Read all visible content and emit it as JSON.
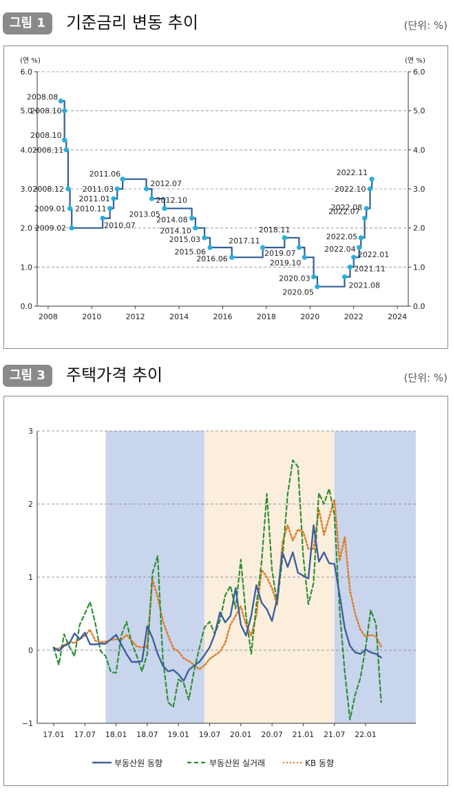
{
  "figure1": {
    "badge": "그림 1",
    "title": "기준금리 변동 추이",
    "unit": "(단위: %)",
    "chart_data": {
      "type": "line",
      "step": true,
      "y_axis_label_left": "(연 %)",
      "y_axis_label_right": "(연 %)",
      "ylim": [
        0,
        6
      ],
      "xlim": [
        2007.5,
        2024.5
      ],
      "y_ticks": [
        "0.0",
        "1.0",
        "2.0",
        "3.0",
        "4.0",
        "5.0",
        "6.0"
      ],
      "x_ticks": [
        "2008",
        "2010",
        "2012",
        "2014",
        "2016",
        "2018",
        "2020",
        "2022",
        "2024"
      ],
      "grid": "horizontal dashed",
      "points": [
        {
          "date": "2008.08",
          "value": 5.25
        },
        {
          "date": "2008.10",
          "value": 5.0
        },
        {
          "date": "2008.10",
          "value": 4.25
        },
        {
          "date": "2008.11",
          "value": 4.0
        },
        {
          "date": "2008.12",
          "value": 3.0
        },
        {
          "date": "2009.01",
          "value": 2.5
        },
        {
          "date": "2009.02",
          "value": 2.0
        },
        {
          "date": "2010.07",
          "value": 2.25
        },
        {
          "date": "2010.11",
          "value": 2.5
        },
        {
          "date": "2011.01",
          "value": 2.75
        },
        {
          "date": "2011.03",
          "value": 3.0
        },
        {
          "date": "2011.06",
          "value": 3.25
        },
        {
          "date": "2012.07",
          "value": 3.0
        },
        {
          "date": "2012.10",
          "value": 2.75
        },
        {
          "date": "2013.05",
          "value": 2.5
        },
        {
          "date": "2014.08",
          "value": 2.25
        },
        {
          "date": "2014.10",
          "value": 2.0
        },
        {
          "date": "2015.03",
          "value": 1.75
        },
        {
          "date": "2015.06",
          "value": 1.5
        },
        {
          "date": "2016.06",
          "value": 1.25
        },
        {
          "date": "2017.11",
          "value": 1.5
        },
        {
          "date": "2018.11",
          "value": 1.75
        },
        {
          "date": "2019.07",
          "value": 1.5
        },
        {
          "date": "2019.10",
          "value": 1.25
        },
        {
          "date": "2020.03",
          "value": 0.75
        },
        {
          "date": "2020.05",
          "value": 0.5
        },
        {
          "date": "2021.08",
          "value": 0.75
        },
        {
          "date": "2021.11",
          "value": 1.0
        },
        {
          "date": "2022.01",
          "value": 1.25
        },
        {
          "date": "2022.04",
          "value": 1.5
        },
        {
          "date": "2022.05",
          "value": 1.75
        },
        {
          "date": "2022.07",
          "value": 2.25
        },
        {
          "date": "2022.08",
          "value": 2.5
        },
        {
          "date": "2022.10",
          "value": 3.0
        },
        {
          "date": "2022.11",
          "value": 3.25
        }
      ]
    }
  },
  "figure3": {
    "badge": "그림 3",
    "title": "주택가격 추이",
    "unit": "(단위: %)",
    "chart_data": {
      "type": "line",
      "ylim": [
        -1,
        3
      ],
      "y_ticks": [
        "−1",
        "0",
        "1",
        "2",
        "3"
      ],
      "x_ticks": [
        "17.01",
        "17.07",
        "18.01",
        "18.07",
        "19.01",
        "19.07",
        "20.01",
        "20.07",
        "21.01",
        "21.07",
        "22.01"
      ],
      "grid": "horizontal dashed",
      "shaded_periods": [
        {
          "from": "17.11",
          "to": "19.06",
          "color": "#c9d5ec"
        },
        {
          "from": "19.06",
          "to": "21.07",
          "color": "#fbeedd"
        },
        {
          "from": "21.07",
          "to": "22.08",
          "color": "#c9d5ec"
        }
      ],
      "legend_position": "bottom",
      "series": [
        {
          "name": "부동산원 동향",
          "color": "#3b5f9e",
          "style": "solid",
          "values": [
            0.03,
            -0.01,
            0.06,
            0.09,
            0.23,
            0.15,
            0.24,
            0.08,
            0.08,
            0.09,
            0.09,
            0.15,
            0.21,
            0.08,
            -0.05,
            -0.16,
            -0.16,
            -0.15,
            0.33,
            0.17,
            -0.05,
            -0.21,
            -0.29,
            -0.27,
            -0.33,
            -0.42,
            -0.27,
            -0.21,
            -0.16,
            -0.07,
            0.04,
            0.22,
            0.52,
            0.38,
            0.47,
            0.85,
            0.35,
            0.2,
            0.47,
            0.89,
            0.65,
            0.56,
            0.4,
            0.71,
            1.34,
            1.14,
            1.34,
            1.06,
            1.02,
            0.98,
            1.71,
            1.21,
            1.34,
            1.19,
            1.18,
            0.76,
            0.3,
            0.06,
            -0.03,
            -0.05,
            0.01,
            -0.03,
            -0.05,
            -0.1
          ]
        },
        {
          "name": "부동산원 실거래",
          "color": "#2a8f2f",
          "style": "dashed",
          "values": [
            0.04,
            -0.2,
            0.22,
            0.05,
            -0.08,
            0.35,
            0.5,
            0.66,
            0.37,
            -0.01,
            -0.08,
            -0.3,
            -0.31,
            0.2,
            0.39,
            0.1,
            -0.08,
            -0.29,
            -0.05,
            1.05,
            1.29,
            -0.11,
            -0.71,
            -0.78,
            -0.4,
            -0.45,
            -0.68,
            -0.28,
            0.02,
            0.31,
            0.39,
            0.22,
            0.41,
            0.75,
            0.88,
            0.57,
            1.24,
            0.47,
            -0.05,
            0.62,
            1.21,
            2.14,
            1.1,
            0.64,
            1.25,
            2.13,
            2.6,
            2.51,
            1.29,
            0.63,
            0.92,
            2.15,
            2.0,
            2.21,
            1.85,
            0.55,
            -0.3,
            -0.95,
            -0.61,
            -0.38,
            0.03,
            0.55,
            0.36,
            -0.71
          ]
        },
        {
          "name": "KB 동향",
          "color": "#e07b28",
          "style": "dotted",
          "values": [
            0.03,
            0.02,
            0.07,
            0.11,
            0.1,
            0.15,
            0.2,
            0.28,
            0.13,
            0.11,
            0.12,
            0.14,
            0.15,
            0.14,
            0.21,
            0.13,
            0.05,
            0.04,
            0.05,
            0.97,
            0.73,
            0.4,
            0.2,
            0.03,
            -0.02,
            -0.11,
            -0.15,
            -0.2,
            -0.26,
            -0.21,
            -0.12,
            -0.07,
            -0.02,
            0.1,
            0.35,
            0.47,
            0.6,
            0.35,
            0.2,
            0.48,
            1.1,
            1.0,
            0.85,
            0.62,
            1.47,
            1.71,
            1.5,
            1.65,
            1.62,
            1.39,
            1.38,
            1.93,
            1.58,
            1.82,
            2.06,
            1.22,
            1.55,
            0.82,
            0.5,
            0.28,
            0.18,
            0.21,
            0.19,
            0.05
          ]
        }
      ]
    }
  }
}
